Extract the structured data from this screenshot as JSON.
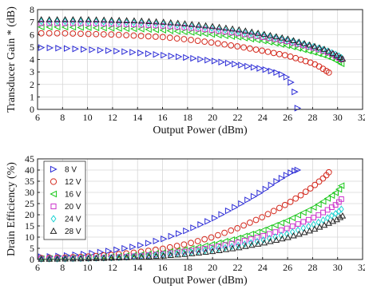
{
  "chart_data": [
    {
      "type": "scatter",
      "xlabel": "Output Power (dBm)",
      "ylabel": "Transducer Gain *  (dB)",
      "xlim": [
        6,
        32
      ],
      "ylim": [
        0,
        8
      ],
      "xticks": [
        6,
        8,
        10,
        12,
        14,
        16,
        18,
        20,
        22,
        24,
        26,
        28,
        30,
        32
      ],
      "yticks": [
        0,
        1,
        2,
        3,
        4,
        5,
        6,
        7,
        8
      ],
      "grid": true,
      "series": [
        {
          "key": "8V",
          "marker": "triangle-right",
          "color": "#2b2bd6",
          "x_range": [
            6.3,
            26.8
          ],
          "count": 38,
          "x": [
            6.3,
            8,
            10,
            12,
            14,
            16,
            18,
            20,
            22,
            24,
            25,
            25.8,
            26.2,
            26.5,
            26.7,
            26.8
          ],
          "y": [
            4.95,
            4.9,
            4.8,
            4.7,
            4.55,
            4.35,
            4.15,
            3.9,
            3.6,
            3.25,
            3.0,
            2.7,
            2.3,
            1.7,
            0.9,
            0.1
          ]
        },
        {
          "key": "12V",
          "marker": "circle",
          "color": "#d42a1e",
          "x_range": [
            6.3,
            29.3
          ],
          "count": 46,
          "x": [
            6.3,
            8,
            10,
            12,
            14,
            16,
            18,
            20,
            22,
            24,
            26,
            27,
            28,
            28.5,
            29,
            29.3
          ],
          "y": [
            6.1,
            6.1,
            6.05,
            6.0,
            5.9,
            5.8,
            5.6,
            5.35,
            5.05,
            4.7,
            4.3,
            4.0,
            3.7,
            3.45,
            3.15,
            2.95
          ]
        },
        {
          "key": "16V",
          "marker": "triangle-left",
          "color": "#19c719",
          "x_range": [
            6.3,
            30.3
          ],
          "count": 48,
          "x": [
            6.3,
            8,
            10,
            12,
            14,
            16,
            18,
            20,
            22,
            24,
            26,
            28,
            29,
            29.5,
            30,
            30.3
          ],
          "y": [
            6.6,
            6.6,
            6.55,
            6.5,
            6.45,
            6.35,
            6.2,
            6.0,
            5.8,
            5.5,
            5.1,
            4.6,
            4.3,
            4.1,
            3.85,
            3.65
          ]
        },
        {
          "key": "20V",
          "marker": "square",
          "color": "#cc33cc",
          "x_range": [
            6.3,
            30.3
          ],
          "count": 48,
          "x": [
            6.3,
            8,
            10,
            12,
            14,
            16,
            18,
            20,
            22,
            24,
            26,
            28,
            29,
            29.5,
            30,
            30.3
          ],
          "y": [
            6.9,
            6.9,
            6.9,
            6.85,
            6.8,
            6.7,
            6.55,
            6.35,
            6.1,
            5.8,
            5.45,
            4.95,
            4.65,
            4.45,
            4.2,
            4.0
          ]
        },
        {
          "key": "24V",
          "marker": "diamond",
          "color": "#1fd3d3",
          "x_range": [
            6.3,
            30.3
          ],
          "count": 48,
          "x": [
            6.3,
            8,
            10,
            12,
            14,
            16,
            18,
            20,
            22,
            24,
            26,
            28,
            29,
            29.5,
            30,
            30.3
          ],
          "y": [
            7.05,
            7.05,
            7.05,
            7.0,
            6.95,
            6.85,
            6.7,
            6.5,
            6.25,
            5.95,
            5.55,
            5.05,
            4.75,
            4.55,
            4.35,
            4.15
          ]
        },
        {
          "key": "28V",
          "marker": "triangle-up",
          "color": "#222222",
          "x_range": [
            6.3,
            30.4
          ],
          "count": 48,
          "x": [
            6.3,
            8,
            10,
            12,
            14,
            16,
            18,
            20,
            22,
            24,
            26,
            28,
            29,
            29.5,
            30,
            30.4
          ],
          "y": [
            7.2,
            7.2,
            7.2,
            7.15,
            7.1,
            7.0,
            6.85,
            6.65,
            6.4,
            6.05,
            5.65,
            5.1,
            4.8,
            4.55,
            4.3,
            4.05
          ]
        }
      ]
    },
    {
      "type": "scatter",
      "xlabel": "Output Power (dBm)",
      "ylabel": "Drain Efficiency (%)",
      "xlim": [
        6,
        32
      ],
      "ylim": [
        0,
        45
      ],
      "xticks": [
        6,
        8,
        10,
        12,
        14,
        16,
        18,
        20,
        22,
        24,
        26,
        28,
        30,
        32
      ],
      "yticks": [
        0,
        5,
        10,
        15,
        20,
        25,
        30,
        35,
        40,
        45
      ],
      "grid": true,
      "legend": {
        "position": "top-left",
        "labels": [
          "8 V",
          "12 V",
          "16 V",
          "20 V",
          "24 V",
          "28 V"
        ]
      },
      "series": [
        {
          "key": "8V",
          "marker": "triangle-right",
          "color": "#2b2bd6",
          "x_range": [
            6.3,
            26.8
          ],
          "count": 38,
          "x": [
            6.3,
            8,
            10,
            12,
            14,
            16,
            18,
            20,
            22,
            24,
            25,
            26,
            26.5,
            26.8
          ],
          "y": [
            1.2,
            1.6,
            2.5,
            4.0,
            6.0,
            9.0,
            13.0,
            18.0,
            24.0,
            30.5,
            34.5,
            38.0,
            39.5,
            40.0
          ]
        },
        {
          "key": "12V",
          "marker": "circle",
          "color": "#d42a1e",
          "x_range": [
            6.3,
            29.3
          ],
          "count": 46,
          "x": [
            6.3,
            8,
            10,
            12,
            14,
            16,
            18,
            20,
            22,
            24,
            26,
            27,
            28,
            29,
            29.3
          ],
          "y": [
            0.6,
            0.8,
            1.3,
            2.1,
            3.2,
            4.8,
            7.0,
            10.0,
            14.0,
            19.0,
            25.0,
            28.5,
            32.5,
            37.0,
            39.0
          ]
        },
        {
          "key": "16V",
          "marker": "triangle-left",
          "color": "#19c719",
          "x_range": [
            6.3,
            30.3
          ],
          "count": 48,
          "x": [
            6.3,
            8,
            10,
            12,
            14,
            16,
            18,
            20,
            22,
            24,
            26,
            28,
            29,
            30,
            30.3
          ],
          "y": [
            0.4,
            0.5,
            0.8,
            1.3,
            2.0,
            3.0,
            4.6,
            6.8,
            9.5,
            13.0,
            17.5,
            23.0,
            26.5,
            30.5,
            33.0
          ]
        },
        {
          "key": "20V",
          "marker": "square",
          "color": "#cc33cc",
          "x_range": [
            6.3,
            30.3
          ],
          "count": 48,
          "x": [
            6.3,
            8,
            10,
            12,
            14,
            16,
            18,
            20,
            22,
            24,
            26,
            28,
            29,
            30,
            30.3
          ],
          "y": [
            0.3,
            0.4,
            0.6,
            1.0,
            1.6,
            2.5,
            3.7,
            5.4,
            7.6,
            10.5,
            14.0,
            18.5,
            21.5,
            25.0,
            27.0
          ]
        },
        {
          "key": "24V",
          "marker": "diamond",
          "color": "#1fd3d3",
          "x_range": [
            6.3,
            30.3
          ],
          "count": 48,
          "x": [
            6.3,
            8,
            10,
            12,
            14,
            16,
            18,
            20,
            22,
            24,
            26,
            28,
            29,
            30,
            30.3
          ],
          "y": [
            0.2,
            0.3,
            0.5,
            0.8,
            1.3,
            2.0,
            3.0,
            4.4,
            6.2,
            8.6,
            11.5,
            15.5,
            18.0,
            21.0,
            22.5
          ]
        },
        {
          "key": "28V",
          "marker": "triangle-up",
          "color": "#222222",
          "x_range": [
            6.3,
            30.4
          ],
          "count": 48,
          "x": [
            6.3,
            8,
            10,
            12,
            14,
            16,
            18,
            20,
            22,
            24,
            26,
            28,
            29,
            30,
            30.4
          ],
          "y": [
            0.15,
            0.25,
            0.4,
            0.65,
            1.0,
            1.6,
            2.4,
            3.6,
            5.2,
            7.3,
            9.8,
            13.2,
            15.5,
            18.0,
            19.5
          ]
        }
      ]
    }
  ]
}
